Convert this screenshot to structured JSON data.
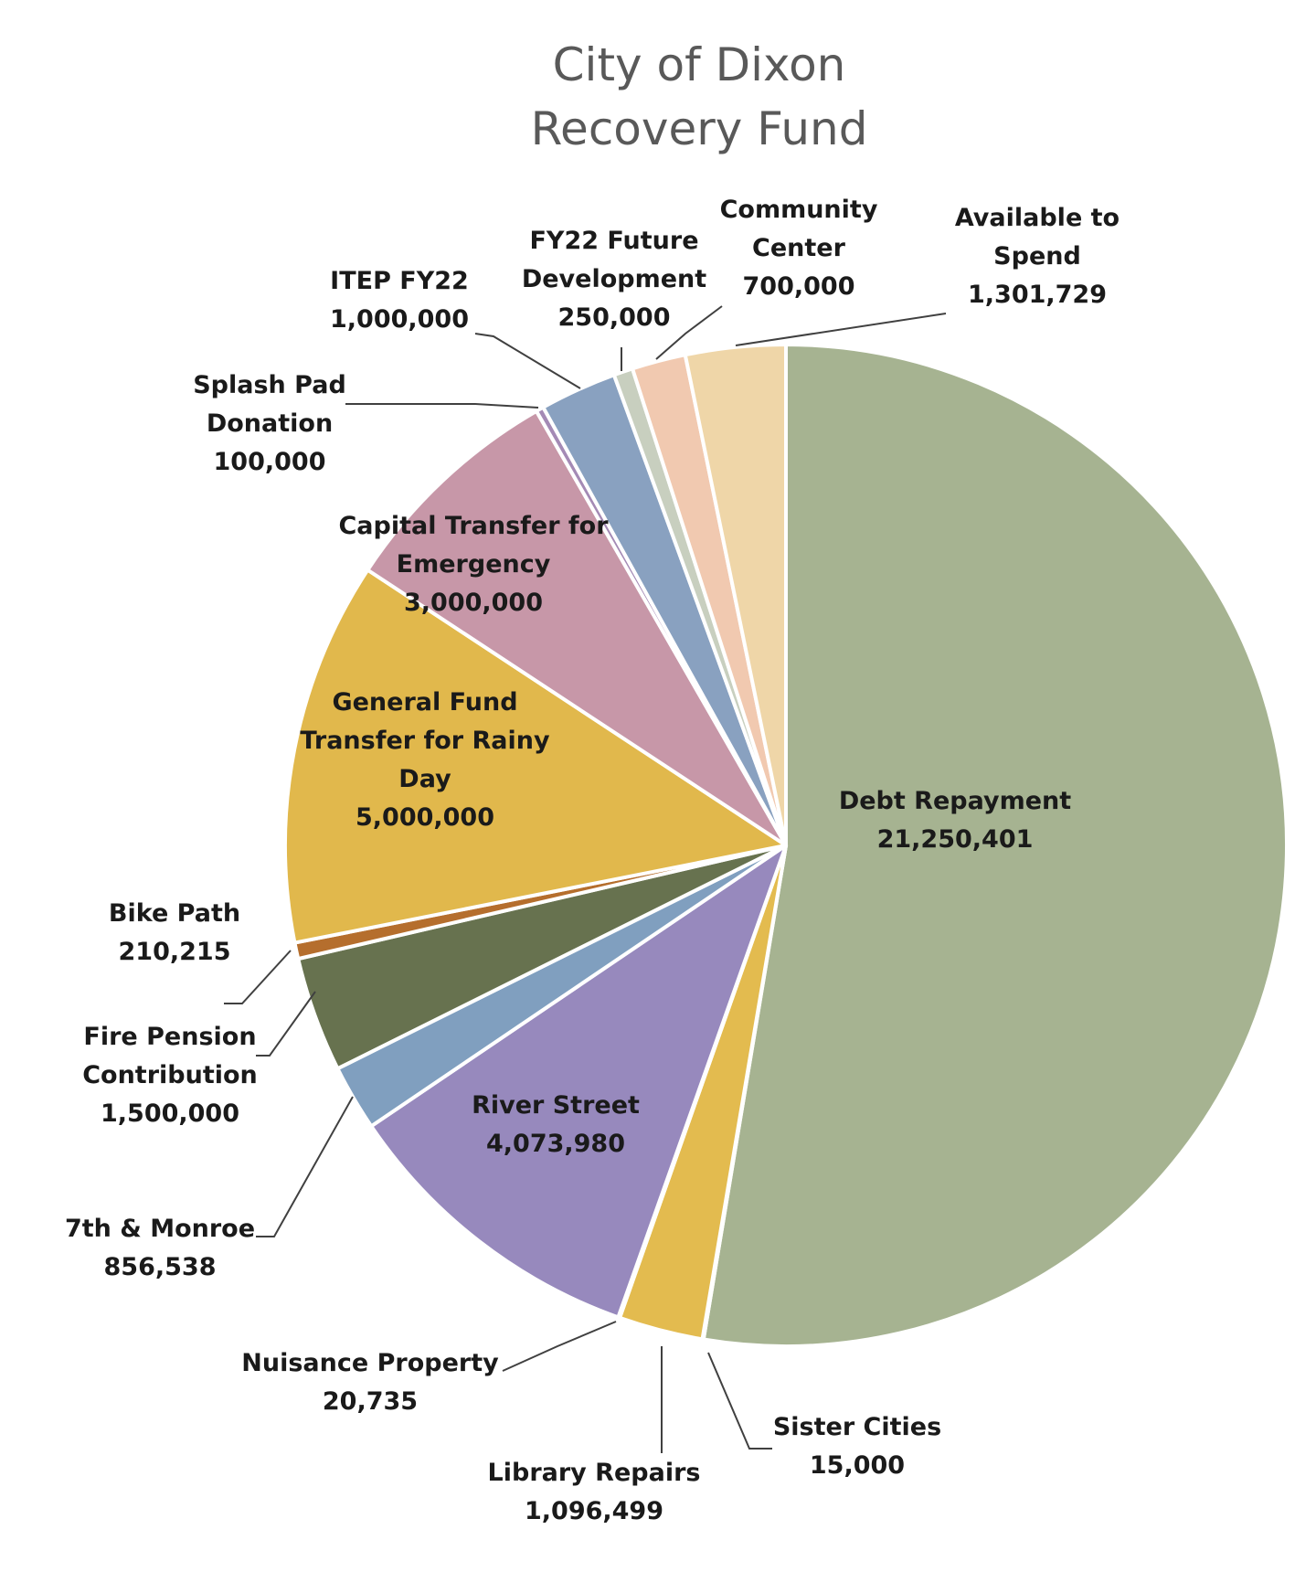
{
  "chart_data": {
    "type": "pie",
    "title": [
      "City of Dixon",
      "Recovery Fund"
    ],
    "start": "12 o'clock, clockwise",
    "slices": [
      {
        "label": "Debt Repayment",
        "value": 21250401,
        "value_text": "21,250,401",
        "color": "#a6b391"
      },
      {
        "label": "Sister Cities",
        "value": 15000,
        "value_text": "15,000",
        "color": "#e2bd5a"
      },
      {
        "label": "Library Repairs",
        "value": 1096499,
        "value_text": "1,096,499",
        "color": "#e3bb4f"
      },
      {
        "label": "Nuisance Property",
        "value": 20735,
        "value_text": "20,735",
        "color": "#aa9ecb"
      },
      {
        "label": "River Street",
        "value": 4073980,
        "value_text": "4,073,980",
        "color": "#9789bd"
      },
      {
        "label": "7th & Monroe",
        "value": 856538,
        "value_text": "856,538",
        "color": "#809fbf"
      },
      {
        "label": "Fire Pension Contribution",
        "value": 1500000,
        "value_text": "1,500,000",
        "color": "#67724f"
      },
      {
        "label": "Bike Path",
        "value": 210215,
        "value_text": "210,215",
        "color": "#b56e2d"
      },
      {
        "label": "General Fund Transfer for Rainy Day",
        "value": 5000000,
        "value_text": "5,000,000",
        "color": "#e1b84c"
      },
      {
        "label": "Capital Transfer for Emergency",
        "value": 3000000,
        "value_text": "3,000,000",
        "color": "#c797a8"
      },
      {
        "label": "Splash Pad Donation",
        "value": 100000,
        "value_text": "100,000",
        "color": "#a48ab5"
      },
      {
        "label": "ITEP FY22",
        "value": 1000000,
        "value_text": "1,000,000",
        "color": "#89a1c0"
      },
      {
        "label": "FY22 Future Development",
        "value": 250000,
        "value_text": "250,000",
        "color": "#c8cfbf"
      },
      {
        "label": "Community Center",
        "value": 700000,
        "value_text": "700,000",
        "color": "#f1c9b0"
      },
      {
        "label": "Available to Spend",
        "value": 1301729,
        "value_text": "1,301,729",
        "color": "#efd6a8"
      }
    ]
  }
}
